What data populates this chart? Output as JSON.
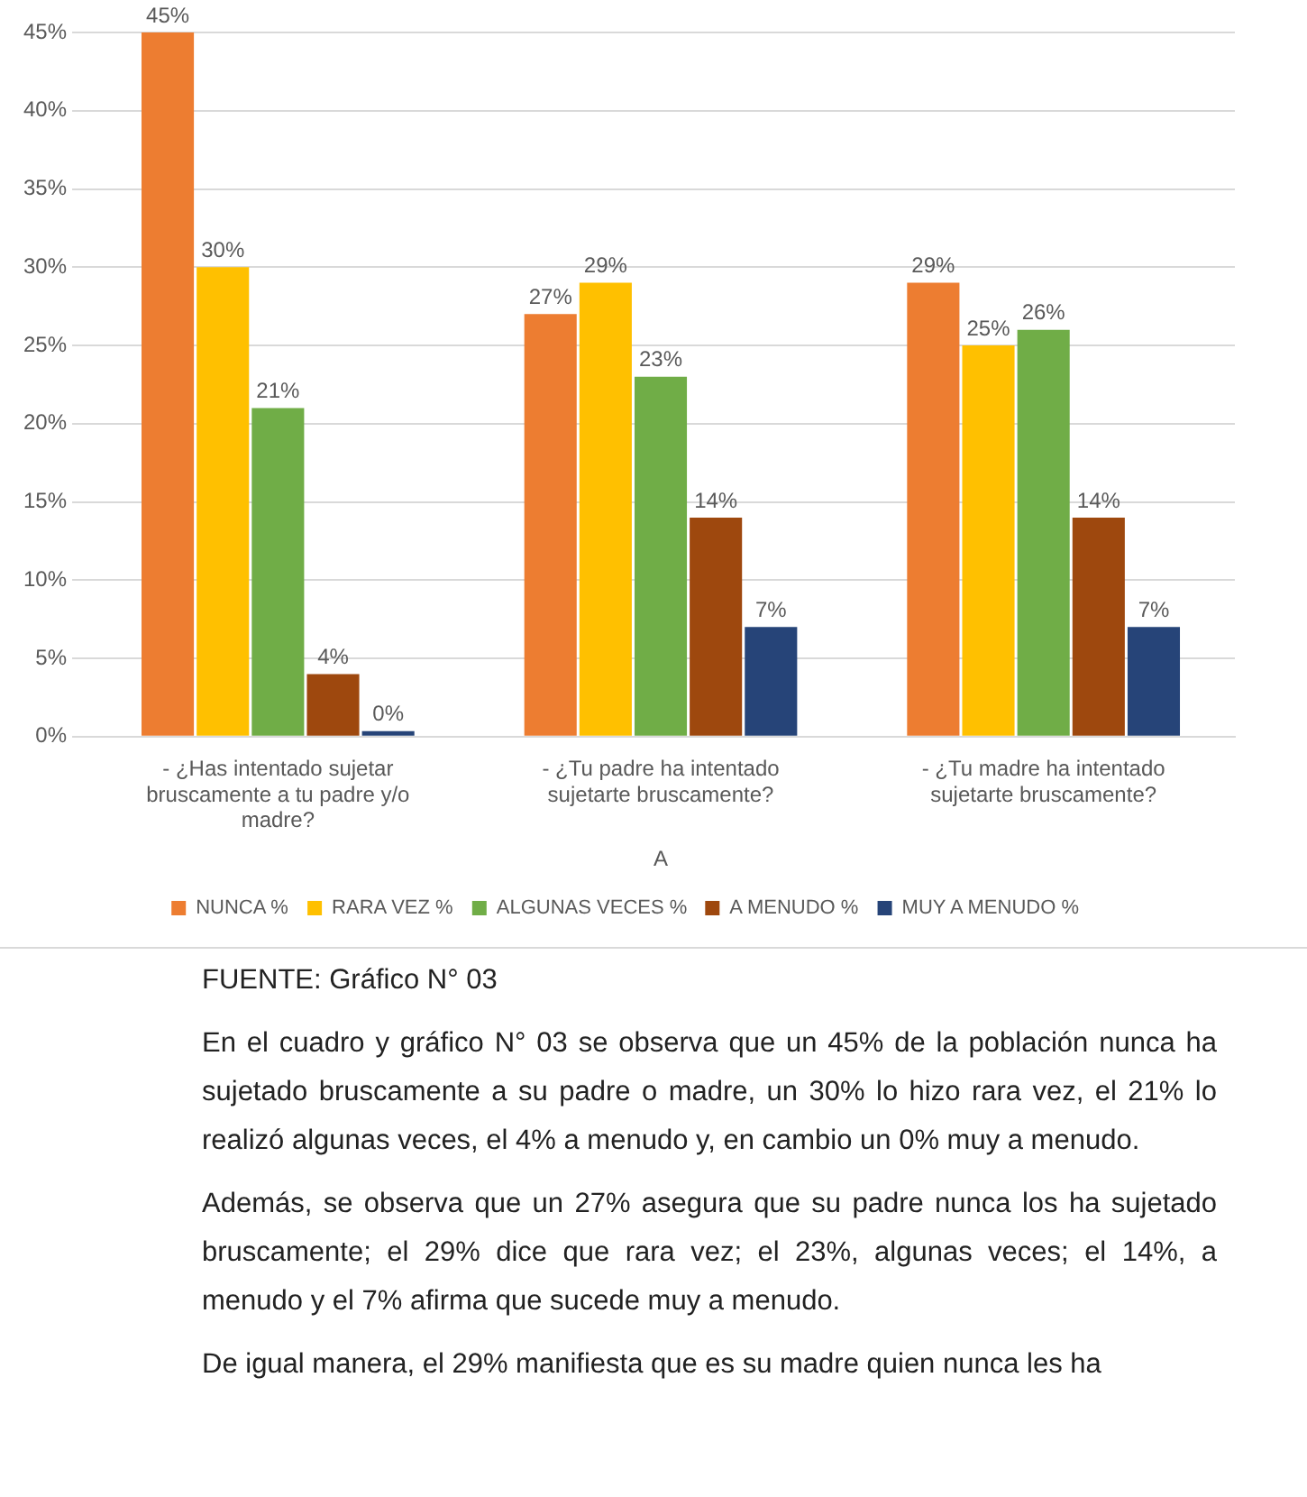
{
  "chart_data": {
    "type": "bar",
    "xlabel": "A",
    "categories": [
      "- ¿Has intentado sujetar bruscamente a tu padre y/o madre?",
      "- ¿Tu padre ha intentado sujetarte bruscamente?",
      "- ¿Tu madre ha intentado sujetarte bruscamente?"
    ],
    "series": [
      {
        "name": "NUNCA %",
        "color": "#ed7d31",
        "values": [
          45,
          27,
          29
        ],
        "value_labels": [
          "45%",
          "27%",
          "29%"
        ]
      },
      {
        "name": "RARA VEZ %",
        "color": "#ffc000",
        "values": [
          30,
          29,
          25
        ],
        "value_labels": [
          "30%",
          "29%",
          "25%"
        ]
      },
      {
        "name": "ALGUNAS VECES %",
        "color": "#70ad47",
        "values": [
          21,
          23,
          26
        ],
        "value_labels": [
          "21%",
          "23%",
          "26%"
        ]
      },
      {
        "name": "A MENUDO %",
        "color": "#9e480e",
        "values": [
          4,
          14,
          14
        ],
        "value_labels": [
          "4%",
          "14%",
          "14%"
        ]
      },
      {
        "name": "MUY A MENUDO %",
        "color": "#264478",
        "values": [
          0,
          7,
          7
        ],
        "value_labels": [
          "0%",
          "7%",
          "7%"
        ]
      }
    ],
    "ylim": [
      0,
      45
    ],
    "yticks": [
      {
        "value": 0,
        "label": "0%"
      },
      {
        "value": 5,
        "label": "5%"
      },
      {
        "value": 10,
        "label": "10%"
      },
      {
        "value": 15,
        "label": "15%"
      },
      {
        "value": 20,
        "label": "20%"
      },
      {
        "value": 25,
        "label": "25%"
      },
      {
        "value": 30,
        "label": "30%"
      },
      {
        "value": 35,
        "label": "35%"
      },
      {
        "value": 40,
        "label": "40%"
      },
      {
        "value": 45,
        "label": "45%"
      }
    ],
    "grid": "y",
    "legend": "bottom",
    "annotations": [
      "FUENTE: Gráfico N° 03",
      "En el cuadro y gráfico N° 03 se observa que un 45% de la población nunca ha sujetado bruscamente a su padre o madre, un 30% lo hizo rara vez, el 21% lo realizó algunas veces, el 4% a menudo y, en cambio un 0% muy a menudo.",
      "Además, se observa que un 27% asegura que su padre nunca los ha sujetado bruscamente; el 29% dice que rara vez; el 23%, algunas veces; el 14%, a menudo y el 7% afirma que sucede muy a menudo.",
      "De igual manera, el 29% manifiesta que es su madre quien nunca les ha"
    ]
  }
}
